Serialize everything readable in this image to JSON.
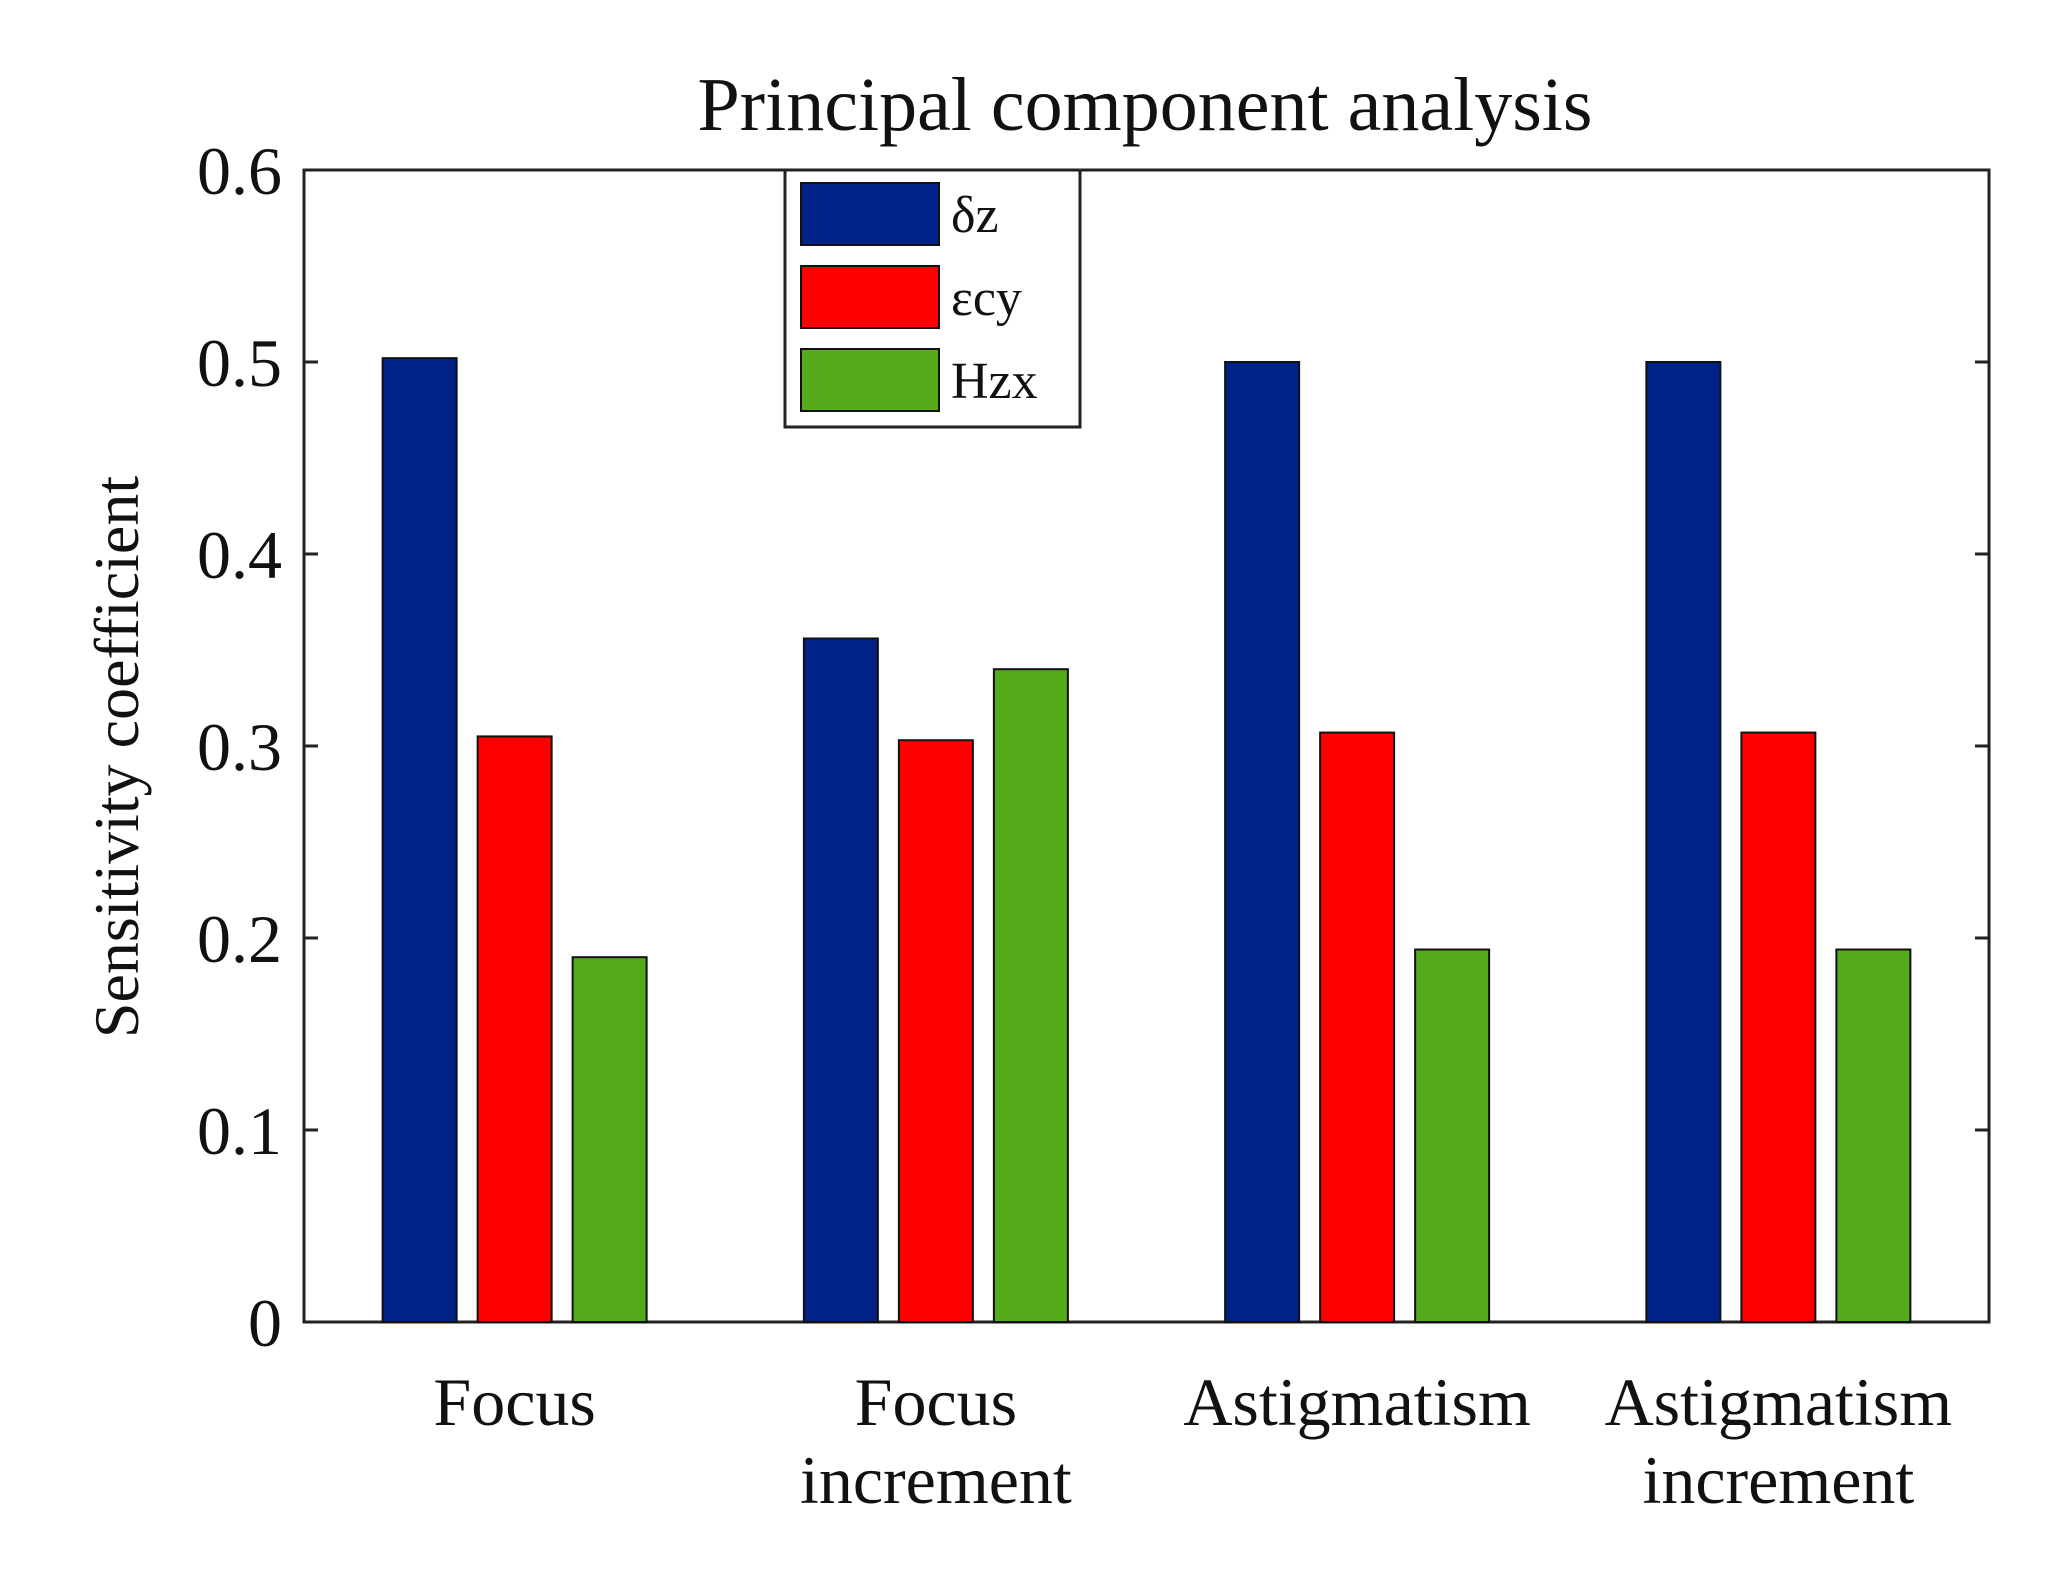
{
  "chart_data": {
    "type": "bar",
    "title": "Principal component analysis",
    "xlabel": "",
    "ylabel": "Sensitivity coefficient",
    "ylim": [
      0,
      0.6
    ],
    "yticks": [
      0,
      0.1,
      0.2,
      0.3,
      0.4,
      0.5,
      0.6
    ],
    "ytick_labels": [
      "0",
      "0.1",
      "0.2",
      "0.3",
      "0.4",
      "0.5",
      "0.6"
    ],
    "categories": [
      [
        "Focus"
      ],
      [
        "Focus",
        "increment"
      ],
      [
        "Astigmatism"
      ],
      [
        "Astigmatism",
        "increment"
      ]
    ],
    "series": [
      {
        "name": "δz",
        "color": "#002288",
        "values": [
          0.502,
          0.356,
          0.5,
          0.5
        ]
      },
      {
        "name": "εcy",
        "color": "#ff0000",
        "values": [
          0.305,
          0.303,
          0.307,
          0.307
        ]
      },
      {
        "name": "Hzx",
        "color": "#55aa1a",
        "values": [
          0.19,
          0.34,
          0.194,
          0.194
        ]
      }
    ],
    "legend_position": "top-left",
    "grid": false
  }
}
